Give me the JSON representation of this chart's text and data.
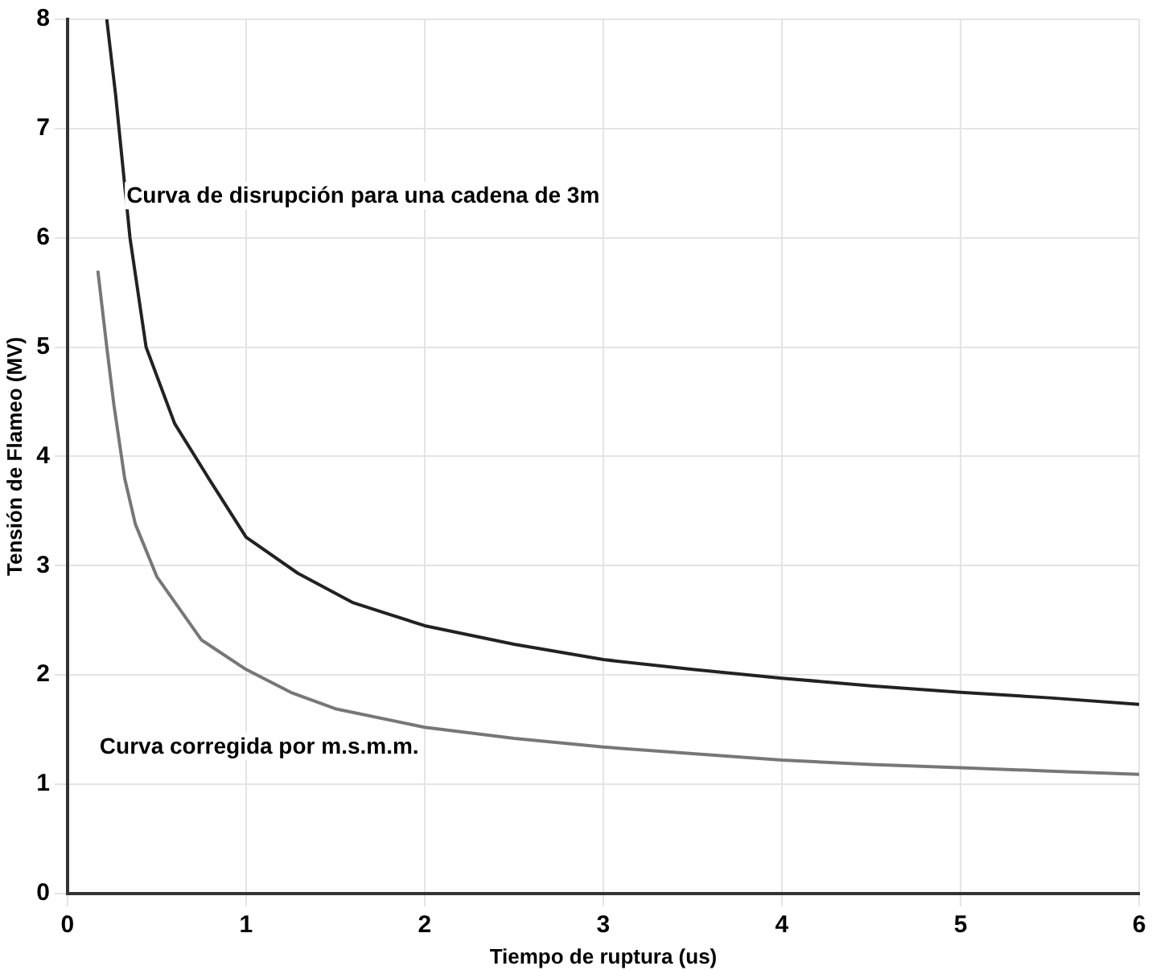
{
  "chart_data": {
    "type": "line",
    "xlabel": "Tiempo de ruptura (us)",
    "ylabel": "Tensión de Flameo (MV)",
    "xlim": [
      0,
      6
    ],
    "xticks": [
      0,
      1,
      2,
      3,
      4,
      5,
      6
    ],
    "ylim": [
      0,
      8
    ],
    "yticks": [
      0,
      1,
      2,
      3,
      4,
      5,
      6,
      7,
      8
    ],
    "grid": true,
    "marker": "none",
    "line_style": "solid",
    "series": [
      {
        "color": "#222222",
        "x": [
          0.22,
          0.27,
          0.35,
          0.44,
          0.6,
          0.79,
          1,
          1.29,
          1.6,
          2,
          2.5,
          3,
          3.5,
          4,
          4.5,
          5,
          5.5,
          6
        ],
        "values": [
          8,
          7.3,
          6,
          5,
          4.3,
          3.8,
          3.26,
          2.93,
          2.66,
          2.45,
          2.28,
          2.14,
          2.05,
          1.97,
          1.9,
          1.84,
          1.79,
          1.73
        ]
      },
      {
        "color": "#777777",
        "x": [
          0.17,
          0.22,
          0.26,
          0.32,
          0.38,
          0.5,
          0.75,
          1,
          1.25,
          1.5,
          2,
          2.5,
          3,
          3.5,
          4,
          4.5,
          5,
          5.5,
          6
        ],
        "values": [
          5.7,
          5,
          4.47,
          3.8,
          3.38,
          2.9,
          2.32,
          2.05,
          1.84,
          1.69,
          1.52,
          1.42,
          1.34,
          1.28,
          1.22,
          1.18,
          1.15,
          1.12,
          1.09
        ]
      }
    ],
    "annotations": [
      "Curva de disrupción para una cadena de 3m",
      "Curva corregida por m.s.m.m."
    ]
  }
}
